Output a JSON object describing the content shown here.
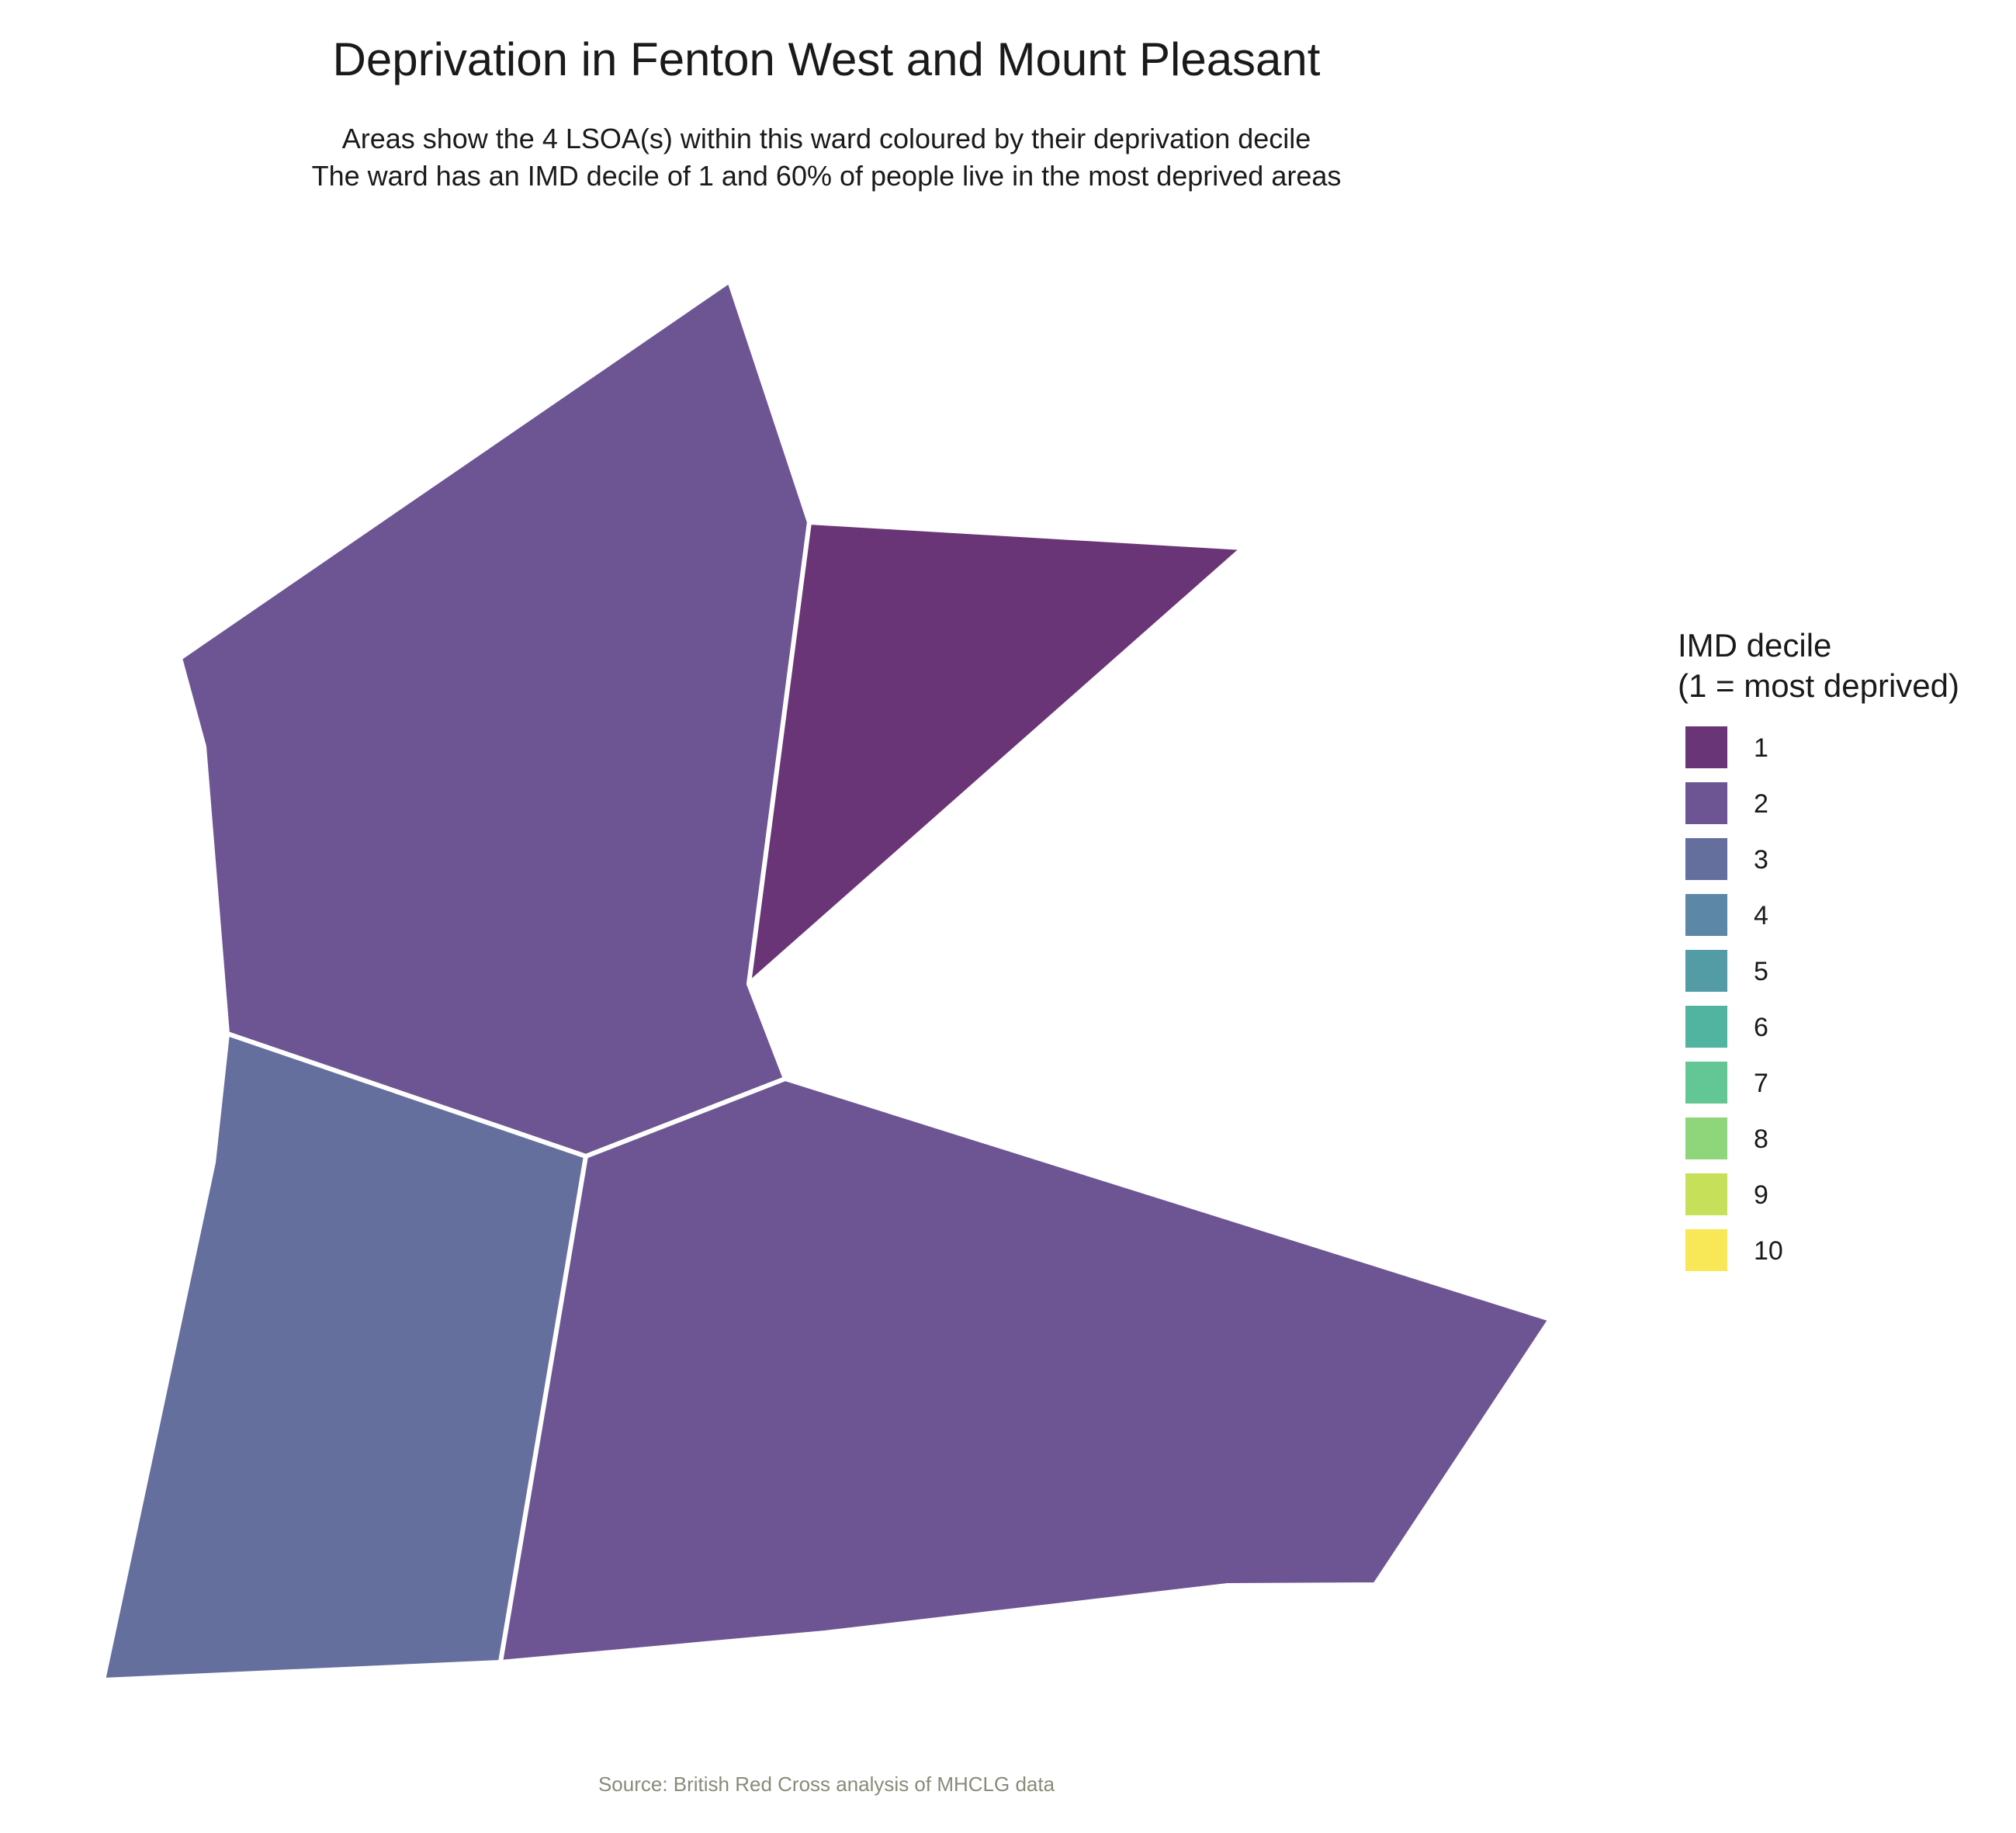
{
  "title": "Deprivation in Fenton West and Mount Pleasant",
  "subtitle_line1": "Areas show the 4 LSOA(s) within this ward coloured by their deprivation decile",
  "subtitle_line2": "The ward has an IMD decile of 1 and 60% of people live in the most deprived areas",
  "legend": {
    "title_line1": "IMD decile",
    "title_line2": "(1 = most deprived)",
    "items": [
      {
        "label": "1",
        "color": "#6a3576"
      },
      {
        "label": "2",
        "color": "#6d5594"
      },
      {
        "label": "3",
        "color": "#656f9e"
      },
      {
        "label": "4",
        "color": "#5d87a7"
      },
      {
        "label": "5",
        "color": "#539ba5"
      },
      {
        "label": "6",
        "color": "#50b4a0"
      },
      {
        "label": "7",
        "color": "#63c795"
      },
      {
        "label": "8",
        "color": "#8fd57a"
      },
      {
        "label": "9",
        "color": "#c6e05a"
      },
      {
        "label": "10",
        "color": "#f8e756"
      }
    ]
  },
  "areas": [
    {
      "id": "north-west",
      "decile": 2,
      "color": "#6d5594"
    },
    {
      "id": "north-east",
      "decile": 1,
      "color": "#6a3576"
    },
    {
      "id": "south-west",
      "decile": 3,
      "color": "#656f9e"
    },
    {
      "id": "south-east",
      "decile": 2,
      "color": "#6d5594"
    }
  ],
  "caption": "Source: British Red Cross analysis of MHCLG data"
}
